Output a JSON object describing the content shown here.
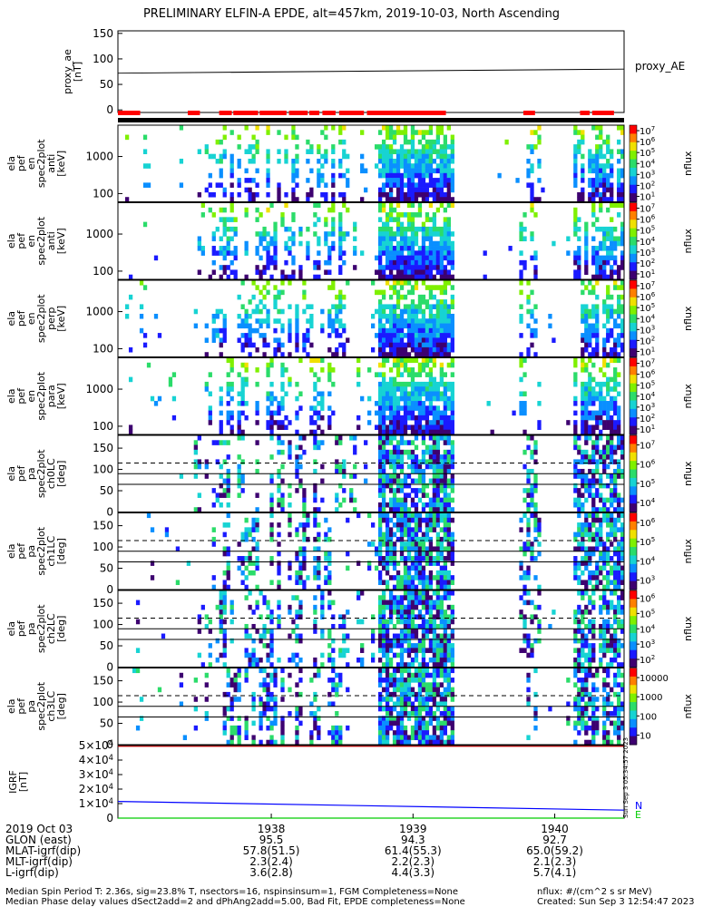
{
  "title": "PRELIMINARY ELFIN-A EPDE, alt=457km, 2019-10-03, North Ascending",
  "proxy_ae": {
    "ylabel": [
      "proxy_ae",
      "[nT]"
    ],
    "legend": "proxy_AE",
    "yticks": [
      "150",
      "100",
      "50",
      "0"
    ],
    "ylim": [
      -5,
      155
    ],
    "line": {
      "x": [
        0,
        1
      ],
      "y": [
        72,
        80
      ]
    }
  },
  "spectro_panels": [
    {
      "ylabel": [
        "ela",
        "pef",
        "en",
        "spec2plot",
        "anti",
        "[keV]"
      ],
      "yticks": [
        "1000",
        "100"
      ],
      "cbar_ticks": [
        "10^7",
        "10^6",
        "10^5",
        "10^4",
        "10^3",
        "10^2",
        "10^1"
      ]
    },
    {
      "ylabel": [
        "ela",
        "pef",
        "en",
        "spec2plot",
        "anti",
        "[keV]"
      ],
      "yticks": [
        "1000",
        "100"
      ],
      "cbar_ticks": [
        "10^7",
        "10^6",
        "10^5",
        "10^4",
        "10^3",
        "10^2",
        "10^1"
      ]
    },
    {
      "ylabel": [
        "ela",
        "pef",
        "en",
        "spec2plot",
        "perp",
        "[keV]"
      ],
      "yticks": [
        "1000",
        "100"
      ],
      "cbar_ticks": [
        "10^7",
        "10^6",
        "10^5",
        "10^4",
        "10^3",
        "10^2",
        "10^1"
      ]
    },
    {
      "ylabel": [
        "ela",
        "pef",
        "en",
        "spec2plot",
        "para",
        "[keV]"
      ],
      "yticks": [
        "1000",
        "100"
      ],
      "cbar_ticks": [
        "10^7",
        "10^6",
        "10^5",
        "10^4",
        "10^3",
        "10^2",
        "10^1"
      ]
    },
    {
      "ylabel": [
        "ela",
        "pef",
        "pa",
        "spec2plot",
        "ch0LC",
        "[deg]"
      ],
      "yticks": [
        "150",
        "100",
        "50",
        "0"
      ],
      "cbar_ticks": [
        "10^7",
        "10^6",
        "10^5",
        "10^4"
      ]
    },
    {
      "ylabel": [
        "ela",
        "pef",
        "pa",
        "spec2plot",
        "ch1LC",
        "[deg]"
      ],
      "yticks": [
        "150",
        "100",
        "50",
        "0"
      ],
      "cbar_ticks": [
        "10^6",
        "10^5",
        "10^4",
        "10^3"
      ]
    },
    {
      "ylabel": [
        "ela",
        "pef",
        "pa",
        "spec2plot",
        "ch2LC",
        "[deg]"
      ],
      "yticks": [
        "150",
        "100",
        "50",
        "0"
      ],
      "cbar_ticks": [
        "10^6",
        "10^5",
        "10^4",
        "10^3",
        "10^2"
      ]
    },
    {
      "ylabel": [
        "ela",
        "pef",
        "pa",
        "spec2plot",
        "ch3LC",
        "[deg]"
      ],
      "yticks": [
        "150",
        "100",
        "50",
        "0"
      ],
      "cbar_ticks": [
        "10000",
        "1000",
        "100",
        "10"
      ]
    }
  ],
  "cbar_label": "nflux",
  "igrf": {
    "ylabel": [
      "IGRF",
      "[nT]"
    ],
    "yticks": [
      "5×10^4",
      "4×10^4",
      "3×10^4",
      "2×10^4",
      "1×10^4",
      "0"
    ],
    "ylim": [
      0,
      50000
    ],
    "legend": [
      "N",
      "E"
    ],
    "series": [
      {
        "name": "N",
        "color": "#0000ff",
        "x": [
          0,
          1
        ],
        "y": [
          11500,
          5500
        ]
      },
      {
        "name": "E",
        "color": "#00cc00",
        "x": [
          0,
          1
        ],
        "y": [
          0,
          0
        ]
      },
      {
        "color": "#cc0000",
        "x": [
          0,
          1
        ],
        "y": [
          49500,
          49500
        ]
      }
    ]
  },
  "side_label": "Sun Sep  3 05:34:57 2023",
  "xaxis": {
    "row_labels": [
      "2019 Oct 03",
      "GLON (east)",
      "MLAT-igrf(dip)",
      "MLT-igrf(dip)",
      "L-igrf(dip)"
    ],
    "ticks": [
      {
        "label": "1938",
        "frac": 0.303,
        "vals": [
          "95.5",
          "57.8(51.5)",
          "2.3(2.4)",
          "3.6(2.8)"
        ]
      },
      {
        "label": "1939",
        "frac": 0.583,
        "vals": [
          "94.3",
          "61.4(55.3)",
          "2.2(2.3)",
          "4.4(3.3)"
        ]
      },
      {
        "label": "1940",
        "frac": 0.863,
        "vals": [
          "92.7",
          "65.0(59.2)",
          "2.1(2.3)",
          "5.7(4.1)"
        ]
      }
    ]
  },
  "footer": {
    "line1": "Median Spin Period T: 2.36s, sig=23.8% T, nsectors=16, nspinsinsum=1, FGM Completeness=None",
    "line2": "Median Phase delay values dSect2add=2 and dPhAng2add=5.00, Bad Fit, EPDE completeness=None",
    "units": "nflux: #/(cm^2 s sr MeV)",
    "created": "Created: Sun Sep  3 12:54:47 2023"
  },
  "colors": {
    "accent": "#ff0000",
    "bar": "#000000"
  }
}
